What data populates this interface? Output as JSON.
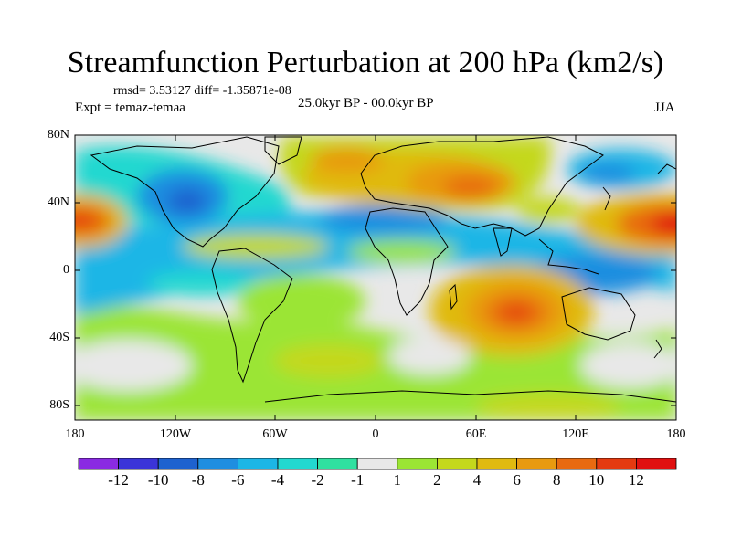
{
  "title": "Streamfunction Perturbation at 200 hPa (km2/s)",
  "stats_line": "rmsd= 3.53127  diff= -1.35871e-08",
  "experiment_line": "Expt = temaz-temaa",
  "period_line": "25.0kyr BP - 00.0kyr BP",
  "season": "JJA",
  "lat_ticks": [
    "80N",
    "40N",
    "0",
    "40S",
    "80S"
  ],
  "lon_ticks": [
    "180",
    "120W",
    "60W",
    "0",
    "60E",
    "120E",
    "180"
  ],
  "colorbar": {
    "labels": [
      "-12",
      "-10",
      "-8",
      "-6",
      "-4",
      "-2",
      "-1",
      "1",
      "2",
      "4",
      "6",
      "8",
      "10",
      "12"
    ],
    "colors": [
      "#8a2be2",
      "#3b34d8",
      "#1e62cf",
      "#1f8ee0",
      "#1cb6e6",
      "#22d8d0",
      "#2fe0a0",
      "#e8e8e8",
      "#9be534",
      "#c4d81c",
      "#e0ba10",
      "#e89a10",
      "#e86a10",
      "#e43a10",
      "#e01010"
    ]
  }
}
